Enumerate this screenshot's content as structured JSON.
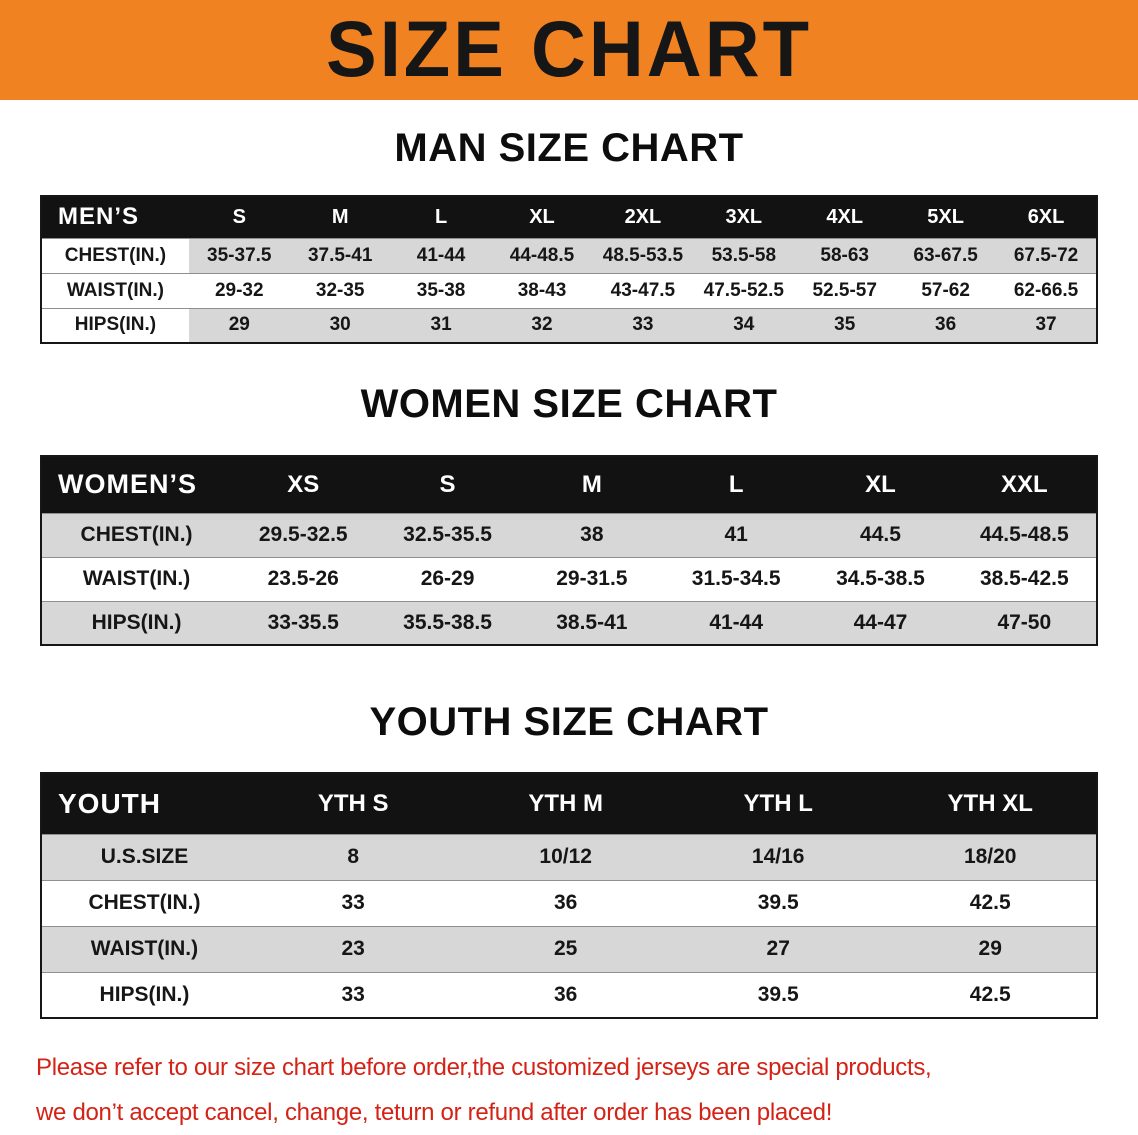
{
  "banner": {
    "title": "SIZE CHART",
    "bg_color": "#f08221",
    "text_color": "#161616"
  },
  "sections": [
    {
      "id": "men",
      "heading": "MAN SIZE CHART",
      "header": [
        "MEN’S",
        "S",
        "M",
        "L",
        "XL",
        "2XL",
        "3XL",
        "4XL",
        "5XL",
        "6XL"
      ],
      "rows": [
        [
          "CHEST(IN.)",
          "35-37.5",
          "37.5-41",
          "41-44",
          "44-48.5",
          "48.5-53.5",
          "53.5-58",
          "58-63",
          "63-67.5",
          "67.5-72"
        ],
        [
          "WAIST(IN.)",
          "29-32",
          "32-35",
          "35-38",
          "38-43",
          "43-47.5",
          "47.5-52.5",
          "52.5-57",
          "57-62",
          "62-66.5"
        ],
        [
          "HIPS(IN.)",
          "29",
          "30",
          "31",
          "32",
          "33",
          "34",
          "35",
          "36",
          "37"
        ]
      ]
    },
    {
      "id": "women",
      "heading": "WOMEN SIZE CHART",
      "header": [
        "WOMEN’S",
        "XS",
        "S",
        "M",
        "L",
        "XL",
        "XXL"
      ],
      "rows": [
        [
          "CHEST(IN.)",
          "29.5-32.5",
          "32.5-35.5",
          "38",
          "41",
          "44.5",
          "44.5-48.5"
        ],
        [
          "WAIST(IN.)",
          "23.5-26",
          "26-29",
          "29-31.5",
          "31.5-34.5",
          "34.5-38.5",
          "38.5-42.5"
        ],
        [
          "HIPS(IN.)",
          "33-35.5",
          "35.5-38.5",
          "38.5-41",
          "41-44",
          "44-47",
          "47-50"
        ]
      ]
    },
    {
      "id": "youth",
      "heading": "YOUTH SIZE CHART",
      "header": [
        "YOUTH",
        "YTH S",
        "YTH M",
        "YTH L",
        "YTH XL"
      ],
      "rows": [
        [
          "U.S.SIZE",
          "8",
          "10/12",
          "14/16",
          "18/20"
        ],
        [
          "CHEST(IN.)",
          "33",
          "36",
          "39.5",
          "42.5"
        ],
        [
          "WAIST(IN.)",
          "23",
          "25",
          "27",
          "29"
        ],
        [
          "HIPS(IN.)",
          "33",
          "36",
          "39.5",
          "42.5"
        ]
      ]
    }
  ],
  "disclaimer": {
    "line1": "Please refer to our size chart before order,the customized jerseys are special products,",
    "line2": "we don’t accept cancel, change, teturn or refund after order has been placed!",
    "text_color": "#d42316"
  }
}
